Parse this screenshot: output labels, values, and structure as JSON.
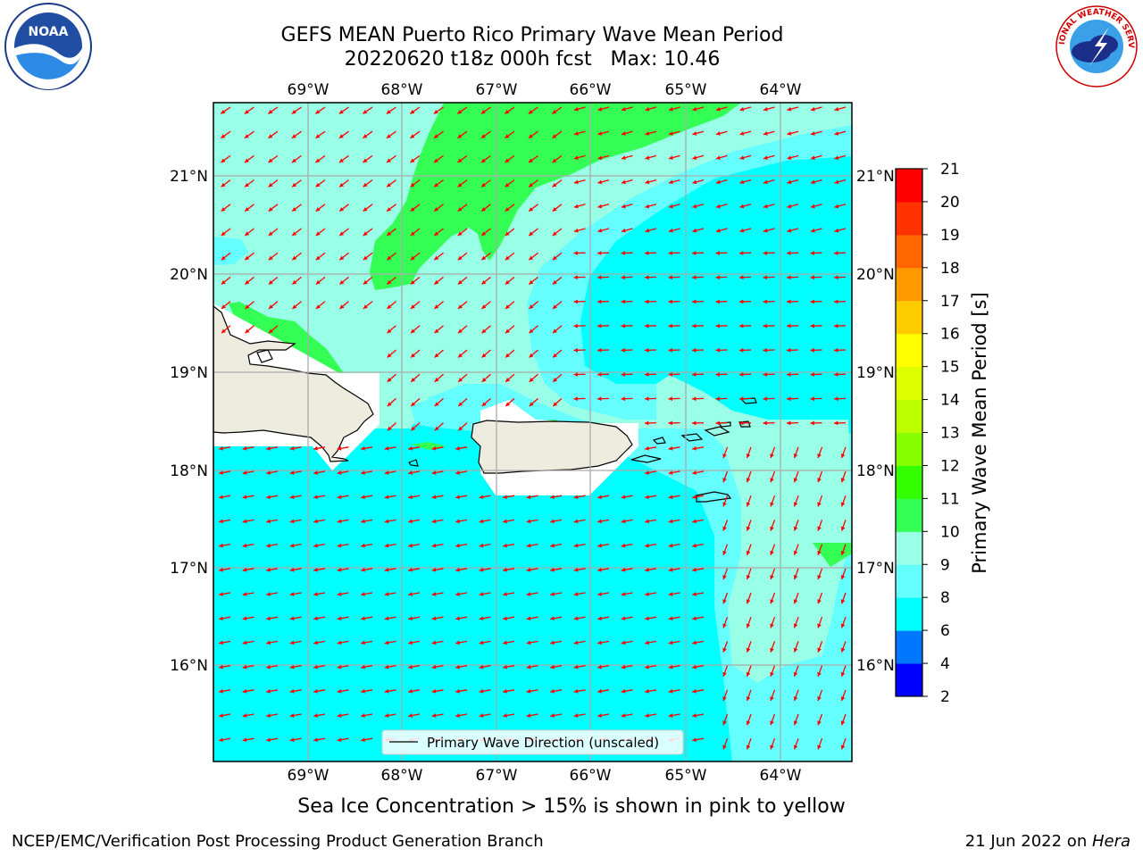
{
  "title": {
    "line1": "GEFS MEAN Puerto Rico Primary Wave Mean Period",
    "line2": "20220620 t18z 000h fcst   Max: 10.46"
  },
  "logos": {
    "left": {
      "icon": "noaa-logo",
      "text": "NOAA"
    },
    "right": {
      "icon": "nws-logo",
      "text": "NATIONAL WEATHER SERVICE"
    }
  },
  "map": {
    "lon_labels": [
      "69°W",
      "68°W",
      "67°W",
      "66°W",
      "65°W",
      "64°W"
    ],
    "lat_labels": [
      "21°N",
      "20°N",
      "19°N",
      "18°N",
      "17°N",
      "16°N"
    ],
    "legend_label": "Primary Wave Direction (unscaled)",
    "arrow_color": "#ff0000",
    "land_color": "#eeecdf",
    "colors": {
      "period_6_8": "#00ffff",
      "period_8_9": "#66ffff",
      "period_9_10": "#99ffe6",
      "period_10_11": "#33ff55"
    }
  },
  "colorbar": {
    "title": "Primary Wave Mean Period [s]",
    "ticks": [
      "2",
      "4",
      "6",
      "8",
      "9",
      "10",
      "11",
      "12",
      "13",
      "14",
      "15",
      "16",
      "17",
      "18",
      "19",
      "20",
      "21"
    ],
    "colors": [
      "#0000ff",
      "#0077ff",
      "#00ffff",
      "#66ffff",
      "#99ffe6",
      "#33ff55",
      "#33ff00",
      "#88ff00",
      "#bbff00",
      "#ddff00",
      "#ffff00",
      "#ffcc00",
      "#ff9900",
      "#ff6600",
      "#ff3300",
      "#ff0000"
    ]
  },
  "subcaption": "Sea Ice Concentration > 15% is shown in pink to yellow",
  "footer": {
    "left": "NCEP/EMC/Verification Post Processing Product Generation Branch",
    "right_prefix": "21 Jun 2022 on ",
    "right_machine": "Hera"
  }
}
